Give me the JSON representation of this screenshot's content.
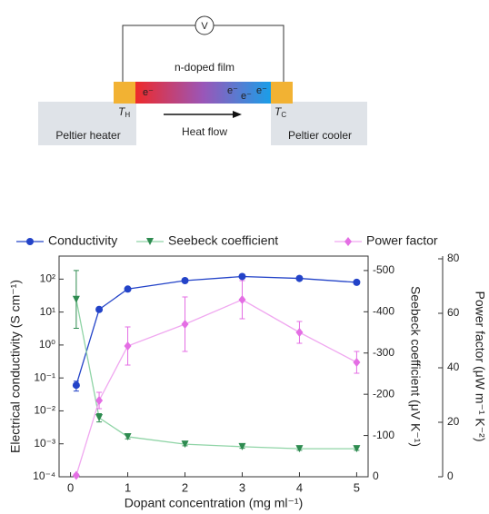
{
  "schematic": {
    "voltmeter": "V",
    "film": "n-doped film",
    "electrons": [
      "e⁻",
      "e⁻",
      "e⁻",
      "e⁻"
    ],
    "hot": {
      "main": "T",
      "sub": "H"
    },
    "cold": {
      "main": "T",
      "sub": "C"
    },
    "flow": "Heat flow",
    "heater": "Peltier heater",
    "cooler": "Peltier cooler"
  },
  "chart_data": {
    "type": "line",
    "xlabel": "Dopant concentration (mg ml⁻¹)",
    "ylabel": "Electrical conductivity (S cm⁻¹)",
    "y2label": "Seebeck coefficient (μV K⁻¹)",
    "y3label": "Power factor (μW m⁻¹ K⁻²)",
    "x": [
      0.1,
      0.5,
      1,
      2,
      3,
      4,
      5
    ],
    "xlim": [
      -0.2,
      5.2
    ],
    "xticks": [
      0,
      1,
      2,
      3,
      4,
      5
    ],
    "ylim": [
      0.0001,
      500
    ],
    "ylog": true,
    "yticks": [
      {
        "value": 0.0001,
        "label": "10⁻⁴"
      },
      {
        "value": 0.001,
        "label": "10⁻³"
      },
      {
        "value": 0.01,
        "label": "10⁻²"
      },
      {
        "value": 0.1,
        "label": "10⁻¹"
      },
      {
        "value": 1,
        "label": "10⁰"
      },
      {
        "value": 10,
        "label": "10¹"
      },
      {
        "value": 100,
        "label": "10²"
      }
    ],
    "y2lim": [
      0,
      -535
    ],
    "y2ticks": [
      0,
      -100,
      -200,
      -300,
      -400,
      -500
    ],
    "y3lim": [
      0,
      81
    ],
    "y3ticks": [
      0,
      20,
      40,
      60,
      80
    ],
    "legend": "top",
    "series": [
      {
        "name": "Conductivity",
        "color": "#2343c8",
        "line_color": "#2343c8",
        "marker": "circle",
        "axis": "y",
        "values": [
          0.06,
          12,
          50,
          90,
          120,
          105,
          80
        ],
        "errors": [
          0.02,
          1,
          4,
          6,
          8,
          6,
          5
        ]
      },
      {
        "name": "Seebeck coefficient",
        "color": "#2e8b50",
        "line_color": "#8fd4a6",
        "marker": "triangle-down",
        "axis": "y2",
        "values": [
          -430,
          -143,
          -97,
          -79,
          -73,
          -68,
          -68
        ],
        "errors": [
          70,
          10,
          5,
          4,
          4,
          4,
          4
        ]
      },
      {
        "name": "Power factor",
        "color": "#e46ee4",
        "line_color": "#f0a8f0",
        "marker": "diamond",
        "axis": "y3",
        "values": [
          0.5,
          28,
          48,
          56,
          65,
          53,
          42
        ],
        "errors": [
          0.5,
          3,
          7,
          10,
          7,
          4,
          4
        ]
      }
    ]
  }
}
